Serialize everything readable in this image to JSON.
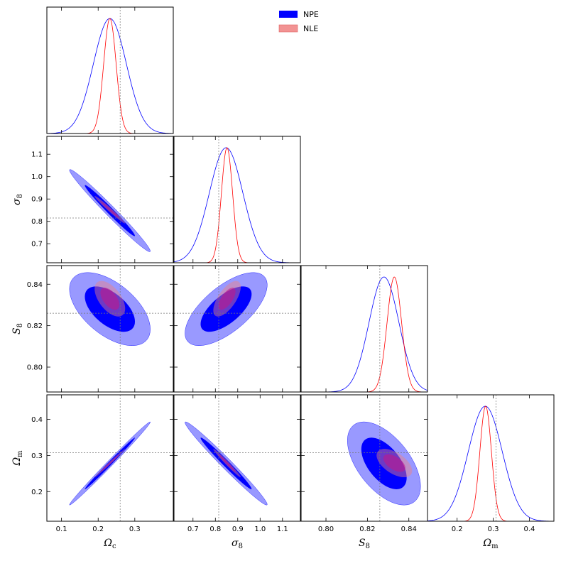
{
  "chart_data": {
    "type": "corner",
    "params": [
      {
        "name": "Ω",
        "sub": "c",
        "lim": [
          0.06,
          0.405
        ],
        "ticks": [
          0.1,
          0.2,
          0.3
        ],
        "tick_labels": [
          "0.1",
          "0.2",
          "0.3"
        ],
        "truth": 0.26
      },
      {
        "name": "σ",
        "sub": "8",
        "lim": [
          0.615,
          1.18
        ],
        "ticks": [
          0.7,
          0.8,
          0.9,
          1.0,
          1.1
        ],
        "tick_labels": [
          "0.7",
          "0.8",
          "0.9",
          "1.0",
          "1.1"
        ],
        "truth": 0.815
      },
      {
        "name": "S",
        "sub": "8",
        "lim": [
          0.788,
          0.849
        ],
        "ticks": [
          0.8,
          0.82,
          0.84
        ],
        "tick_labels": [
          "0.80",
          "0.82",
          "0.84"
        ],
        "truth": 0.826
      },
      {
        "name": "Ω",
        "sub": "m",
        "lim": [
          0.118,
          0.468
        ],
        "ticks": [
          0.2,
          0.3,
          0.4
        ],
        "tick_labels": [
          "0.2",
          "0.3",
          "0.4"
        ],
        "truth": 0.308
      }
    ],
    "series": [
      {
        "name": "NPE",
        "color": "#0000ff",
        "means": [
          0.232,
          0.848,
          0.828,
          0.278
        ],
        "sds": [
          0.045,
          0.075,
          0.0072,
          0.047
        ]
      },
      {
        "name": "NLE",
        "color": "#ff0000",
        "fill": "#f08080",
        "means": [
          0.232,
          0.852,
          0.833,
          0.279
        ],
        "sds": [
          0.017,
          0.025,
          0.0035,
          0.016
        ]
      }
    ],
    "legend_position": "top-center",
    "grid": false
  }
}
